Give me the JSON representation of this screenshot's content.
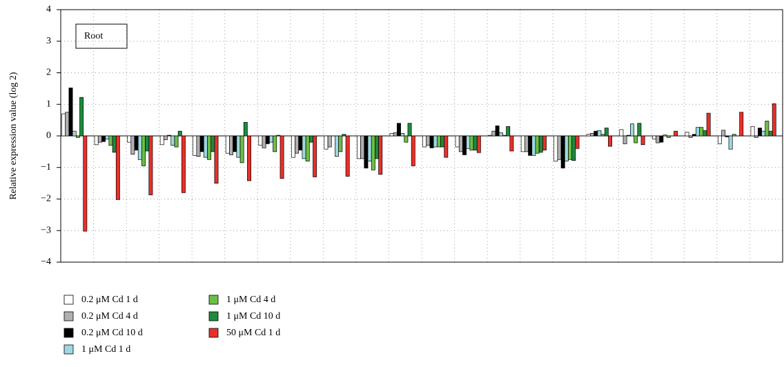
{
  "chart_data": {
    "type": "bar",
    "annotation": "Root",
    "y_label": "Relative expression value (log 2)",
    "categories": [
      null,
      null,
      null,
      null,
      null,
      null,
      null,
      null,
      null,
      null,
      null,
      null,
      null,
      null,
      null,
      null,
      null,
      null,
      null,
      null,
      null,
      null
    ],
    "ylim": [
      -4,
      4
    ],
    "yticks": [
      {
        "value": -4,
        "label": "−4"
      },
      {
        "value": -3,
        "label": "−3"
      },
      {
        "value": -2,
        "label": "−2"
      },
      {
        "value": -1,
        "label": "−1"
      },
      0,
      1,
      2,
      3,
      4
    ],
    "grid": true,
    "series": [
      {
        "name": "0.2 μM Cd 1 d",
        "color": "#ffffff",
        "values": [
          0.7,
          -0.28,
          -0.2,
          -0.28,
          -0.62,
          -0.55,
          -0.3,
          -0.68,
          -0.42,
          -0.72,
          0.08,
          -0.35,
          -0.35,
          0.02,
          -0.5,
          -0.8,
          0.05,
          0.2,
          -0.1,
          0.12,
          -0.25,
          0.3
        ]
      },
      {
        "name": "0.2 μM Cd 4 d",
        "color": "#b0b0b0",
        "values": [
          0.75,
          -0.2,
          -0.58,
          -0.12,
          -0.65,
          -0.6,
          -0.38,
          -0.55,
          -0.35,
          -0.72,
          0.1,
          -0.3,
          -0.5,
          0.15,
          -0.5,
          -0.75,
          0.08,
          -0.25,
          -0.22,
          -0.05,
          0.18,
          -0.05
        ]
      },
      {
        "name": "0.2 μM Cd 10 d",
        "color": "#000000",
        "values": [
          1.52,
          -0.18,
          -0.45,
          0.02,
          -0.5,
          -0.5,
          -0.25,
          -0.45,
          0.0,
          -1.02,
          0.4,
          -0.38,
          -0.6,
          0.32,
          -0.62,
          -1.02,
          0.15,
          0.02,
          -0.2,
          0.05,
          -0.03,
          0.25
        ]
      },
      {
        "name": "1 μM Cd 1 d",
        "color": "#9fd8e0",
        "values": [
          0.15,
          -0.1,
          -0.75,
          -0.3,
          -0.68,
          -0.68,
          -0.2,
          -0.72,
          -0.65,
          -0.8,
          0.08,
          -0.35,
          -0.4,
          0.1,
          -0.62,
          -0.8,
          0.17,
          0.38,
          0.03,
          0.27,
          -0.42,
          0.15
        ]
      },
      {
        "name": "1 μM Cd 4 d",
        "color": "#6bbf45",
        "values": [
          -0.05,
          -0.3,
          -0.95,
          -0.35,
          -0.75,
          -0.85,
          -0.5,
          -0.8,
          -0.5,
          -1.08,
          -0.2,
          -0.35,
          -0.45,
          0.02,
          -0.55,
          -0.75,
          0.05,
          -0.22,
          -0.05,
          0.27,
          0.05,
          0.47
        ]
      },
      {
        "name": "1 μM Cd 10 d",
        "color": "#1f8a3e",
        "values": [
          1.22,
          -0.52,
          -0.48,
          0.15,
          -0.5,
          0.43,
          0.02,
          -0.2,
          0.05,
          -0.72,
          0.4,
          -0.35,
          -0.45,
          0.3,
          -0.52,
          -0.78,
          0.25,
          0.4,
          0.0,
          0.17,
          0.0,
          0.15
        ]
      },
      {
        "name": "50 μM Cd 1 d",
        "color": "#e8302a",
        "values": [
          -3.02,
          -2.02,
          -1.87,
          -1.8,
          -1.5,
          -1.42,
          -1.35,
          -1.3,
          -1.28,
          -1.22,
          -0.95,
          -0.68,
          -0.53,
          -0.48,
          -0.45,
          -0.4,
          -0.33,
          -0.28,
          0.15,
          0.72,
          0.75,
          1.02
        ]
      }
    ]
  }
}
